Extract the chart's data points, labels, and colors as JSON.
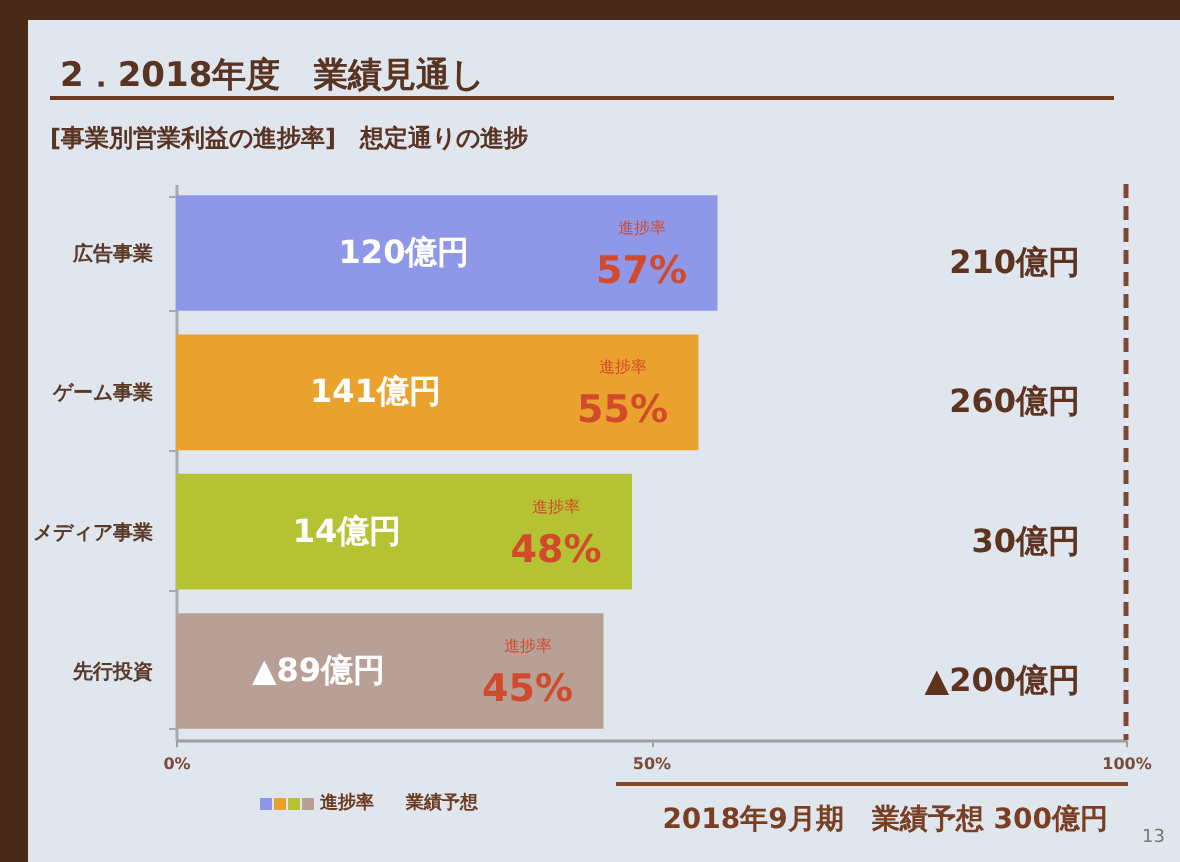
{
  "chart_data": {
    "type": "bar",
    "orientation": "horizontal",
    "title": "2．2018年度　業績見通し",
    "subtitle": "[事業別営業利益の進捗率]　想定通りの進捗",
    "categories": [
      "広告事業",
      "ゲーム事業",
      "メディア事業",
      "先行投資"
    ],
    "series": [
      {
        "name": "進捗率",
        "values": [
          57,
          55,
          48,
          45
        ],
        "colors": [
          "#8f97e8",
          "#eaa22f",
          "#b5c234",
          "#b9a097"
        ],
        "value_labels": [
          "57%",
          "55%",
          "48%",
          "45%"
        ]
      }
    ],
    "xlim": [
      0,
      100
    ],
    "xticks": [
      {
        "value": 0,
        "label": "0%"
      },
      {
        "value": 50,
        "label": "50%"
      },
      {
        "value": 100,
        "label": "100%"
      }
    ],
    "ref_lines": [
      {
        "axis": "x",
        "value": 100,
        "label": "業績予想",
        "color": "#7a4a35",
        "line_style": "dashed"
      }
    ],
    "legend": "bottom left",
    "annotations": [
      {
        "text": "120億円",
        "x": 24,
        "y": "広告事業"
      },
      {
        "text": "141億円",
        "x": 21,
        "y": "ゲーム事業"
      },
      {
        "text": "14億円",
        "x": 18,
        "y": "メディア事業"
      },
      {
        "text": "▲89億円",
        "x": 15,
        "y": "先行投資"
      },
      "210億円",
      "260億円",
      "30億円",
      "▲200億円",
      "2018年9月期　業績予想 300億円",
      "13"
    ]
  }
}
